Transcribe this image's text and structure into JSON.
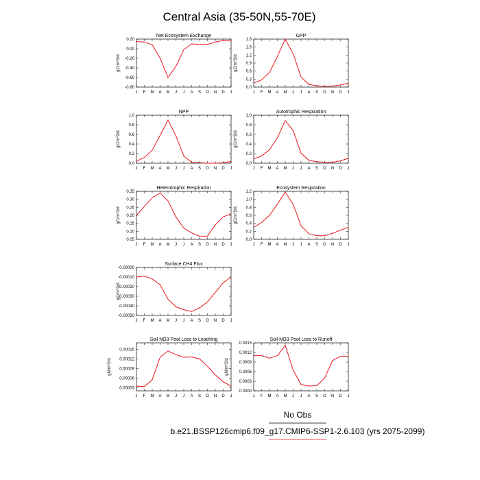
{
  "figure": {
    "title": "Central Asia (35-50N,55-70E)",
    "legend_label": "No Obs",
    "case_label": "b.e21.BSSP126cmip6.f09_g17.CMIP6-SSP1-2.6.103 (yrs 2075-2099)",
    "line_color": "#e8151b",
    "legend_line_color": "#000000",
    "case_line_color": "#e8151b"
  },
  "chart_data": [
    {
      "type": "line",
      "title": "Net Ecosystem Exchange",
      "ylabel": "gC/m^2/d",
      "categories": [
        "J",
        "F",
        "M",
        "A",
        "M",
        "J",
        "J",
        "A",
        "S",
        "O",
        "N",
        "D",
        "J"
      ],
      "ylim": [
        -0.8,
        0.2
      ],
      "yticks": [
        0.2,
        0.0,
        -0.2,
        -0.4,
        -0.6,
        -0.8
      ],
      "ytick_labels": [
        "0.20",
        "0.00",
        "-0.20",
        "-0.40",
        "-0.60",
        "-0.80"
      ],
      "series": [
        {
          "values": [
            0.15,
            0.14,
            0.08,
            -0.2,
            -0.6,
            -0.37,
            -0.02,
            0.1,
            0.09,
            0.09,
            0.14,
            0.17,
            0.16
          ]
        }
      ]
    },
    {
      "type": "line",
      "title": "GPP",
      "ylabel": "gC/m^2/d",
      "categories": [
        "J",
        "F",
        "M",
        "A",
        "M",
        "J",
        "J",
        "A",
        "S",
        "O",
        "N",
        "D",
        "J"
      ],
      "ylim": [
        0.0,
        1.8
      ],
      "yticks": [
        0.0,
        0.3,
        0.6,
        0.9,
        1.2,
        1.5,
        1.8
      ],
      "ytick_labels": [
        "0.0",
        "0.3",
        "0.6",
        "0.9",
        "1.2",
        "1.5",
        "1.8"
      ],
      "series": [
        {
          "values": [
            0.15,
            0.27,
            0.55,
            1.15,
            1.8,
            1.25,
            0.38,
            0.1,
            0.05,
            0.03,
            0.04,
            0.08,
            0.15
          ]
        }
      ]
    },
    {
      "type": "line",
      "title": "NPP",
      "ylabel": "gC/m^2/d",
      "categories": [
        "J",
        "F",
        "M",
        "A",
        "M",
        "J",
        "J",
        "A",
        "S",
        "O",
        "N",
        "D",
        "J"
      ],
      "ylim": [
        0.0,
        1.0
      ],
      "yticks": [
        0.0,
        0.2,
        0.4,
        0.6,
        0.8,
        1.0
      ],
      "ytick_labels": [
        "0.0",
        "0.2",
        "0.4",
        "0.6",
        "0.8",
        "1.0"
      ],
      "series": [
        {
          "values": [
            0.04,
            0.12,
            0.27,
            0.58,
            0.9,
            0.57,
            0.15,
            0.02,
            0.01,
            0.0,
            0.0,
            0.01,
            0.04
          ]
        }
      ]
    },
    {
      "type": "line",
      "title": "Autotrophic Respiration",
      "ylabel": "gC/m^2/d",
      "categories": [
        "J",
        "F",
        "M",
        "A",
        "M",
        "J",
        "J",
        "A",
        "S",
        "O",
        "N",
        "D",
        "J"
      ],
      "ylim": [
        0.0,
        1.0
      ],
      "yticks": [
        0.0,
        0.2,
        0.4,
        0.6,
        0.8,
        1.0
      ],
      "ytick_labels": [
        "0.0",
        "0.2",
        "0.4",
        "0.6",
        "0.8",
        "1.0"
      ],
      "series": [
        {
          "values": [
            0.09,
            0.15,
            0.28,
            0.53,
            0.89,
            0.68,
            0.21,
            0.06,
            0.03,
            0.02,
            0.02,
            0.05,
            0.1
          ]
        }
      ]
    },
    {
      "type": "line",
      "title": "Heterotrophic Respiration",
      "ylabel": "gC/m^2/d",
      "categories": [
        "J",
        "F",
        "M",
        "A",
        "M",
        "J",
        "J",
        "A",
        "S",
        "O",
        "N",
        "D",
        "J"
      ],
      "ylim": [
        0.05,
        0.35
      ],
      "yticks": [
        0.05,
        0.1,
        0.15,
        0.2,
        0.25,
        0.3,
        0.35
      ],
      "ytick_labels": [
        "0.05",
        "0.10",
        "0.15",
        "0.20",
        "0.25",
        "0.30",
        "0.35"
      ],
      "series": [
        {
          "values": [
            0.2,
            0.255,
            0.31,
            0.34,
            0.29,
            0.19,
            0.12,
            0.09,
            0.07,
            0.07,
            0.14,
            0.19,
            0.21
          ]
        }
      ]
    },
    {
      "type": "line",
      "title": "Ecosystem Respiration",
      "ylabel": "gC/m^2/d",
      "categories": [
        "J",
        "F",
        "M",
        "A",
        "M",
        "J",
        "J",
        "A",
        "S",
        "O",
        "N",
        "D",
        "J"
      ],
      "ylim": [
        0.0,
        1.2
      ],
      "yticks": [
        0.0,
        0.2,
        0.4,
        0.6,
        0.8,
        1.0,
        1.2
      ],
      "ytick_labels": [
        "0.0",
        "0.2",
        "0.4",
        "0.6",
        "0.8",
        "1.0",
        "1.2"
      ],
      "series": [
        {
          "values": [
            0.3,
            0.42,
            0.6,
            0.88,
            1.18,
            0.88,
            0.34,
            0.14,
            0.09,
            0.09,
            0.15,
            0.23,
            0.3
          ]
        }
      ]
    },
    {
      "type": "line",
      "title": "Surface CH4 Flux",
      "ylabel": "gC/m^2/d",
      "categories": [
        "J",
        "F",
        "M",
        "A",
        "M",
        "J",
        "J",
        "A",
        "S",
        "O",
        "N",
        "D",
        "J"
      ],
      "ylim": [
        -0.0005,
        0.0
      ],
      "yticks": [
        0.0,
        -0.0001,
        -0.0002,
        -0.0003,
        -0.0004,
        -0.0005
      ],
      "ytick_labels": [
        "-0.00000",
        "-0.00010",
        "-0.00020",
        "-0.00030",
        "-0.00040",
        "-0.00050"
      ],
      "series": [
        {
          "values": [
            -0.0001,
            -9e-05,
            -0.00012,
            -0.00018,
            -0.00033,
            -0.00041,
            -0.00044,
            -0.00046,
            -0.00042,
            -0.00036,
            -0.00026,
            -0.00016,
            -0.0001
          ]
        }
      ]
    },
    {
      "type": "line",
      "title": "Soil NO3 Pool Loss to Leaching",
      "ylabel": "gN/m^2/d",
      "categories": [
        "J",
        "F",
        "M",
        "A",
        "M",
        "J",
        "J",
        "A",
        "S",
        "O",
        "N",
        "D",
        "J"
      ],
      "ylim": [
        2e-05,
        0.00017
      ],
      "yticks": [
        3e-05,
        6e-05,
        9e-05,
        0.00012,
        0.00015
      ],
      "ytick_labels": [
        "0.00003",
        "0.00006",
        "0.00009",
        "0.00012",
        "0.00015"
      ],
      "series": [
        {
          "values": [
            3.5e-05,
            3.3e-05,
            5.5e-05,
            0.000125,
            0.000145,
            0.000133,
            0.000125,
            0.000126,
            0.00012,
            9.7e-05,
            7e-05,
            4.8e-05,
            3.5e-05
          ]
        }
      ]
    },
    {
      "type": "line",
      "title": "Soil NO3 Pool Loss to Runoff",
      "ylabel": "gN/m^2/d",
      "categories": [
        "J",
        "F",
        "M",
        "A",
        "M",
        "J",
        "J",
        "A",
        "S",
        "O",
        "N",
        "D",
        "J"
      ],
      "ylim": [
        0.0,
        0.0015
      ],
      "yticks": [
        0.0,
        0.0003,
        0.0006,
        0.0009,
        0.0012,
        0.0015
      ],
      "ytick_labels": [
        "0.0000",
        "0.0003",
        "0.0006",
        "0.0009",
        "0.0012",
        "0.0015"
      ],
      "series": [
        {
          "values": [
            0.0011,
            0.0011,
            0.00102,
            0.0011,
            0.00142,
            0.00065,
            0.0002,
            0.00015,
            0.00016,
            0.0004,
            0.00095,
            0.00108,
            0.00108
          ]
        }
      ]
    }
  ]
}
